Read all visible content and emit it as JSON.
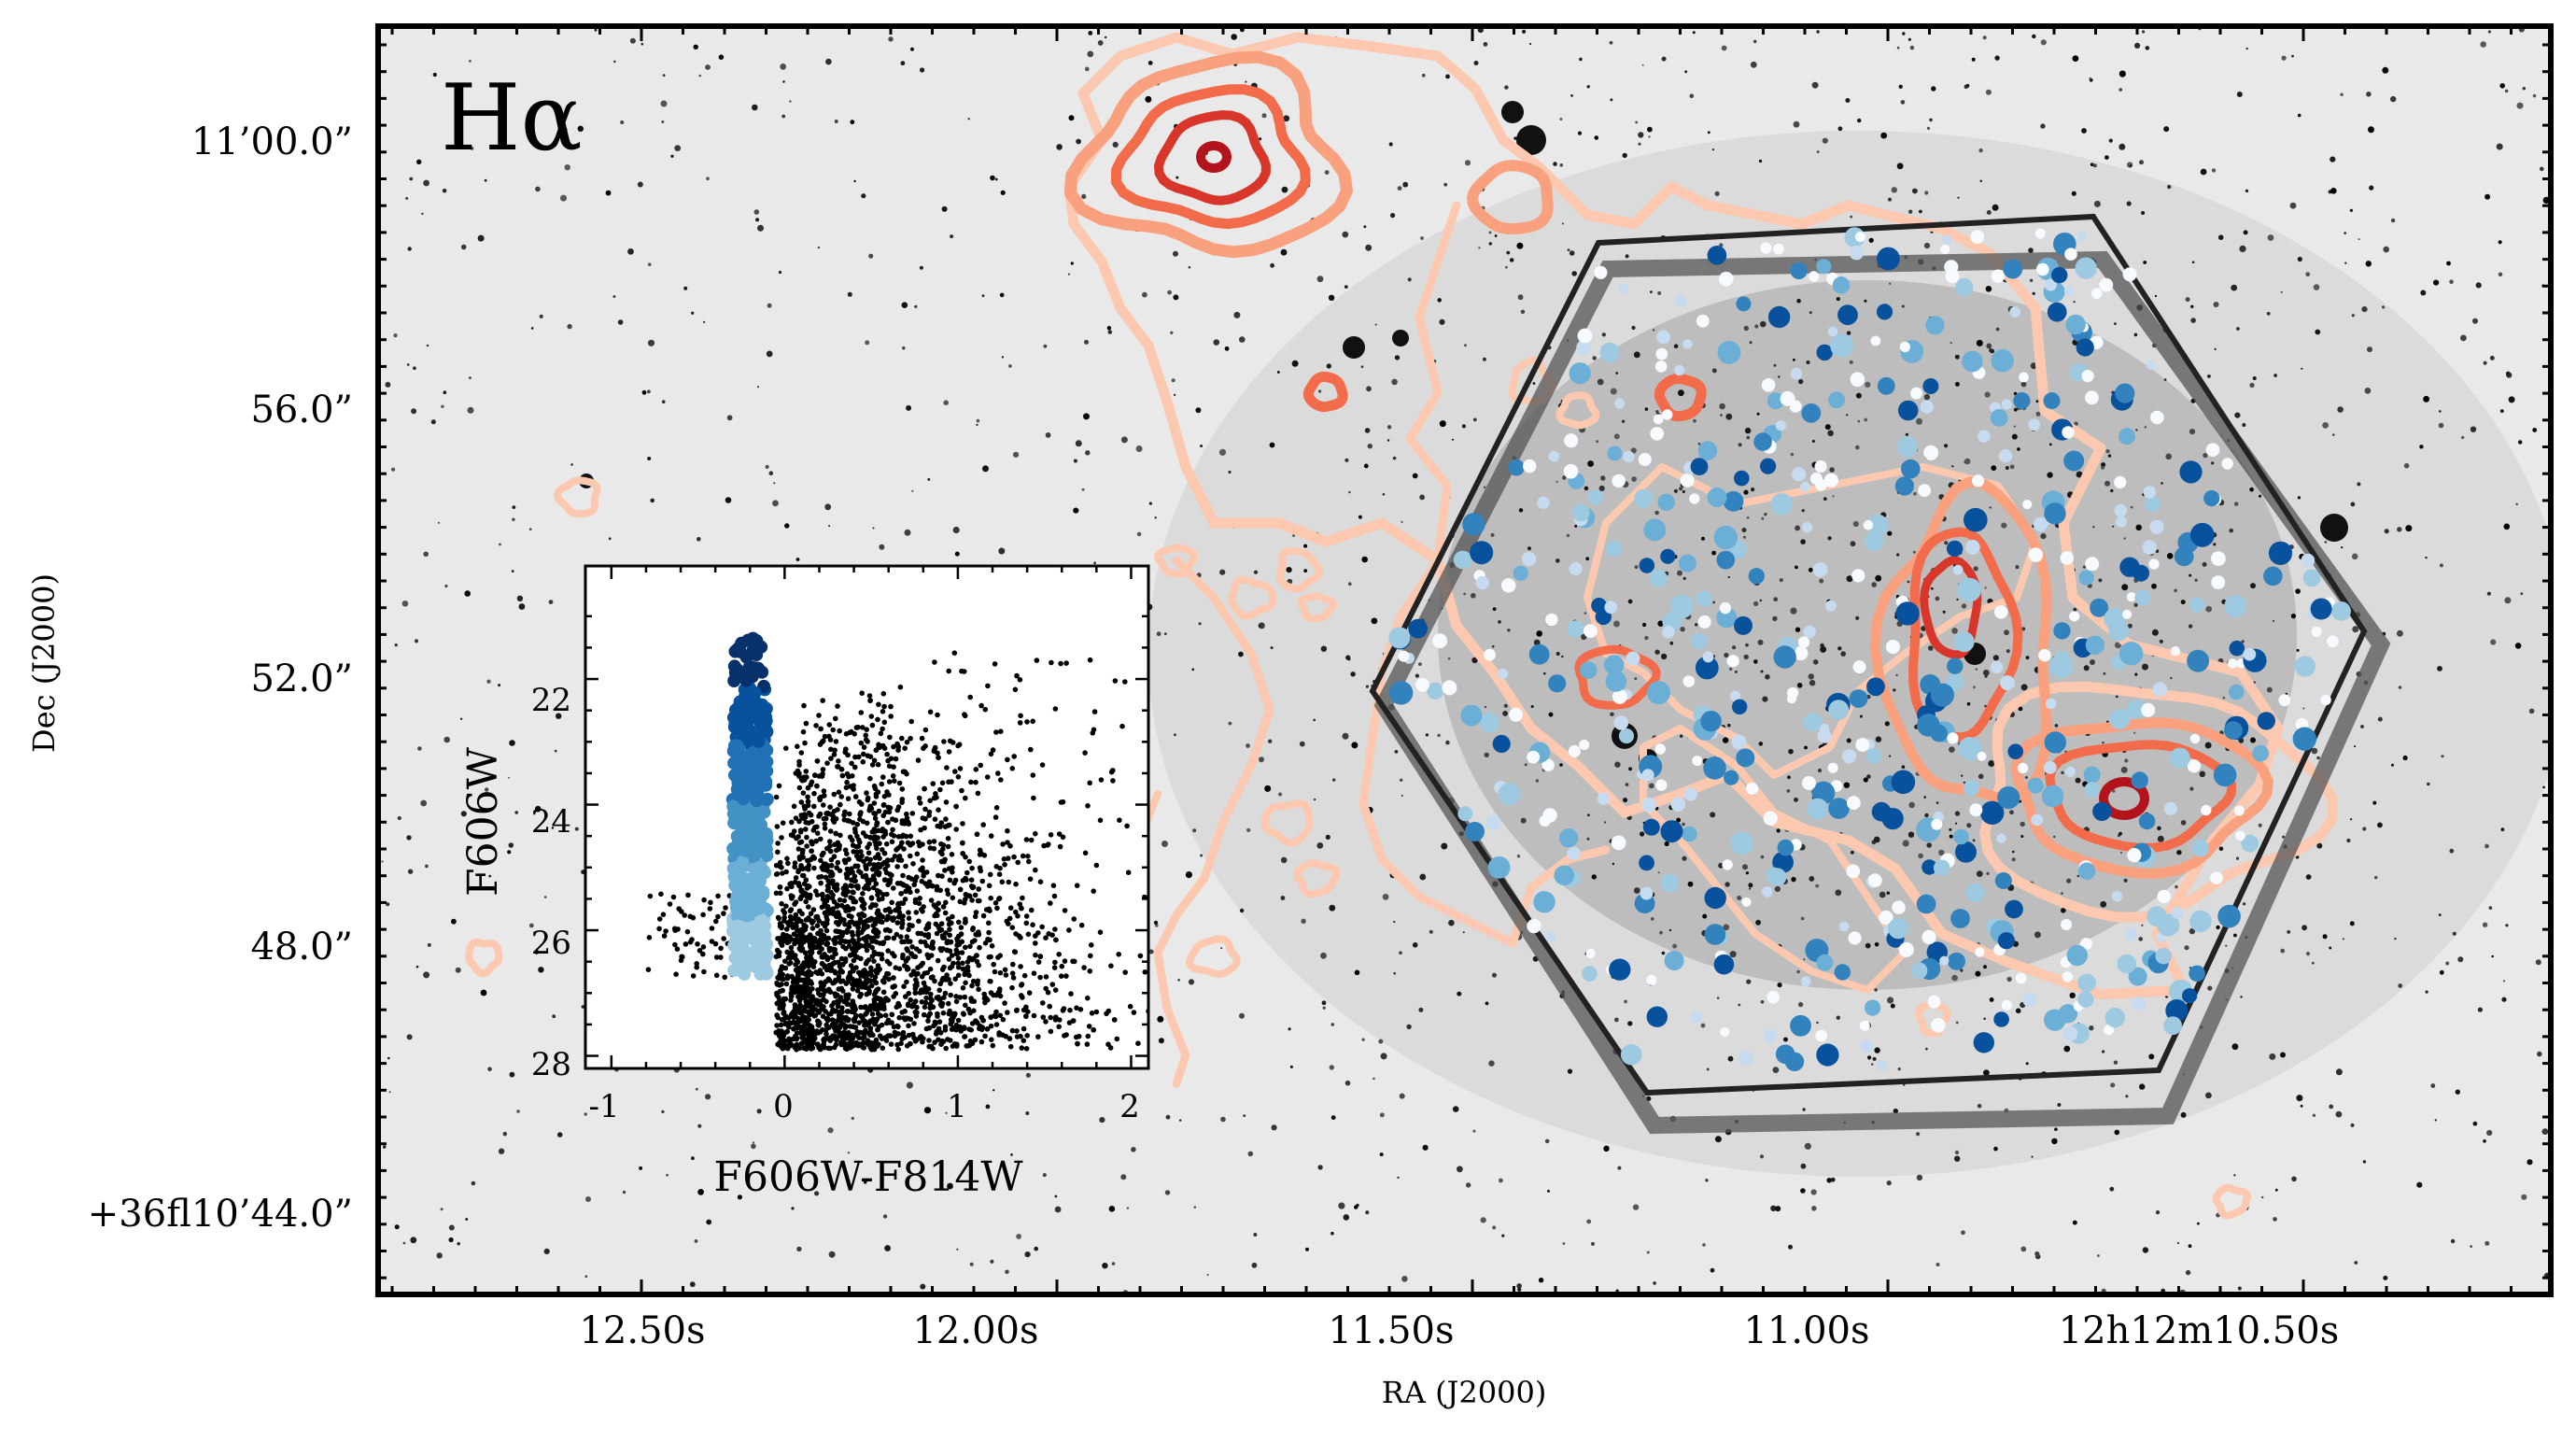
{
  "chart_data": [
    {
      "type": "scatter",
      "title": "",
      "annotation": "Hα",
      "annotation_color": "#c0262a",
      "xlabel": "RA (J2000)",
      "ylabel": "Dec (J2000)",
      "x_tick_labels": [
        "12.50s",
        "12.00s",
        "11.50s",
        "11.00s",
        "12h12m10.50s"
      ],
      "y_tick_labels": [
        "11’00.0”",
        "56.0”",
        "52.0”",
        "48.0”",
        "+36ﬂ10’44.0”"
      ],
      "background": "grayscale stellar field image",
      "overlays": {
        "footprint_outline_color": "#222222",
        "contour_colors": [
          "#fcc9b0",
          "#f9a17e",
          "#f26b4a",
          "#d8352b",
          "#b3131b"
        ],
        "point_colormap": [
          "#f7fbff",
          "#c6dbef",
          "#9ecae1",
          "#6baed6",
          "#3182bd",
          "#08519c"
        ]
      },
      "grid": false
    },
    {
      "type": "scatter",
      "title": "",
      "xlabel": "F606W-F814W",
      "ylabel": "F606W",
      "xlim": [
        -1.15,
        2.1
      ],
      "ylim": [
        28.2,
        20.2
      ],
      "x_ticks": [
        "-1",
        "0",
        "1",
        "2"
      ],
      "y_ticks": [
        "22",
        "24",
        "26",
        "28"
      ],
      "series": [
        {
          "color": "#000000",
          "description_values": {
            "x_range": [
              -0.8,
              2.0
            ],
            "y_range": [
              21.3,
              28.0
            ]
          }
        },
        {
          "colormap": "blue",
          "x_range": [
            -0.3,
            -0.1
          ],
          "y_range": [
            21.2,
            26.7
          ]
        }
      ],
      "grid": false
    }
  ]
}
